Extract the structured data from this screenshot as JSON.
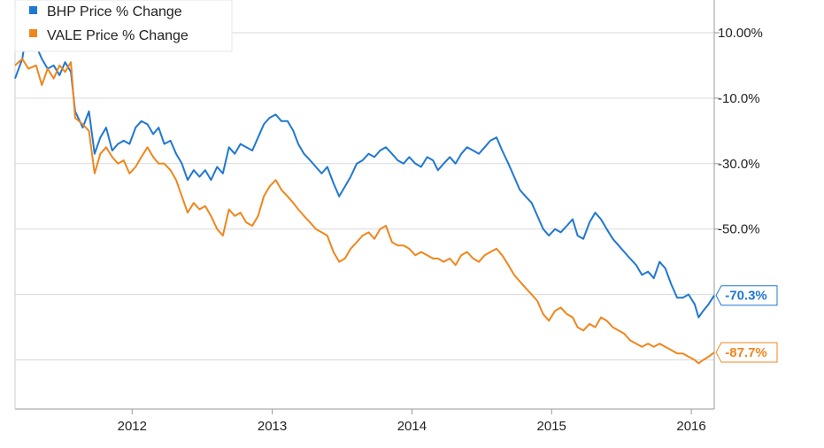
{
  "chart_data": {
    "type": "line",
    "title": "",
    "xlabel": "",
    "ylabel": "",
    "x_range": [
      "2011-03-01",
      "2016-03-01"
    ],
    "ylim": [
      -105,
      20
    ],
    "y_ticks": [
      {
        "value": 10,
        "label": "10.00%"
      },
      {
        "value": -10,
        "label": "-10.0%"
      },
      {
        "value": -30,
        "label": "-30.0%"
      },
      {
        "value": -50,
        "label": "-50.0%"
      }
    ],
    "y_gridlines": [
      10,
      -10,
      -30,
      -50,
      -70,
      -90
    ],
    "x_ticks": [
      {
        "date": "2012-01-01",
        "label": "2012"
      },
      {
        "date": "2013-01-01",
        "label": "2013"
      },
      {
        "date": "2014-01-01",
        "label": "2014"
      },
      {
        "date": "2015-01-01",
        "label": "2015"
      },
      {
        "date": "2016-01-01",
        "label": "2016"
      }
    ],
    "grid": true,
    "legend_position": "top-left",
    "series": [
      {
        "name": "BHP Price % Change",
        "color": "#1f78d1",
        "end_label": "-70.3%",
        "points": [
          [
            "2011-03-01",
            -4
          ],
          [
            "2011-03-20",
            2
          ],
          [
            "2011-04-05",
            14
          ],
          [
            "2011-04-25",
            6
          ],
          [
            "2011-05-10",
            2
          ],
          [
            "2011-05-25",
            -1
          ],
          [
            "2011-06-10",
            0
          ],
          [
            "2011-06-25",
            -3
          ],
          [
            "2011-07-10",
            1
          ],
          [
            "2011-07-25",
            -2
          ],
          [
            "2011-08-05",
            -14
          ],
          [
            "2011-08-25",
            -19
          ],
          [
            "2011-09-10",
            -14
          ],
          [
            "2011-09-25",
            -27
          ],
          [
            "2011-10-10",
            -22
          ],
          [
            "2011-10-25",
            -19
          ],
          [
            "2011-11-10",
            -26
          ],
          [
            "2011-11-25",
            -24
          ],
          [
            "2011-12-10",
            -23
          ],
          [
            "2011-12-25",
            -24
          ],
          [
            "2012-01-10",
            -19
          ],
          [
            "2012-01-25",
            -17
          ],
          [
            "2012-02-10",
            -18
          ],
          [
            "2012-02-25",
            -21
          ],
          [
            "2012-03-10",
            -19
          ],
          [
            "2012-03-25",
            -24
          ],
          [
            "2012-04-10",
            -23
          ],
          [
            "2012-04-25",
            -27
          ],
          [
            "2012-05-10",
            -30
          ],
          [
            "2012-05-25",
            -35
          ],
          [
            "2012-06-10",
            -32
          ],
          [
            "2012-06-25",
            -34
          ],
          [
            "2012-07-10",
            -32
          ],
          [
            "2012-07-25",
            -35
          ],
          [
            "2012-08-10",
            -31
          ],
          [
            "2012-08-25",
            -33
          ],
          [
            "2012-09-10",
            -25
          ],
          [
            "2012-09-25",
            -27
          ],
          [
            "2012-10-10",
            -24
          ],
          [
            "2012-10-25",
            -25
          ],
          [
            "2012-11-10",
            -26
          ],
          [
            "2012-11-25",
            -22
          ],
          [
            "2012-12-10",
            -18
          ],
          [
            "2012-12-25",
            -16
          ],
          [
            "2013-01-10",
            -15
          ],
          [
            "2013-01-25",
            -17
          ],
          [
            "2013-02-10",
            -17
          ],
          [
            "2013-02-25",
            -20
          ],
          [
            "2013-03-10",
            -24
          ],
          [
            "2013-03-25",
            -27
          ],
          [
            "2013-04-10",
            -29
          ],
          [
            "2013-04-25",
            -31
          ],
          [
            "2013-05-10",
            -33
          ],
          [
            "2013-05-25",
            -31
          ],
          [
            "2013-06-10",
            -36
          ],
          [
            "2013-06-25",
            -40
          ],
          [
            "2013-07-10",
            -37
          ],
          [
            "2013-07-25",
            -34
          ],
          [
            "2013-08-10",
            -30
          ],
          [
            "2013-08-25",
            -29
          ],
          [
            "2013-09-10",
            -27
          ],
          [
            "2013-09-25",
            -28
          ],
          [
            "2013-10-10",
            -26
          ],
          [
            "2013-10-25",
            -25
          ],
          [
            "2013-11-10",
            -27
          ],
          [
            "2013-11-25",
            -29
          ],
          [
            "2013-12-10",
            -30
          ],
          [
            "2013-12-25",
            -28
          ],
          [
            "2014-01-10",
            -30
          ],
          [
            "2014-01-25",
            -31
          ],
          [
            "2014-02-10",
            -28
          ],
          [
            "2014-02-25",
            -29
          ],
          [
            "2014-03-10",
            -32
          ],
          [
            "2014-03-25",
            -30
          ],
          [
            "2014-04-10",
            -28
          ],
          [
            "2014-04-25",
            -30
          ],
          [
            "2014-05-10",
            -27
          ],
          [
            "2014-05-25",
            -25
          ],
          [
            "2014-06-10",
            -26
          ],
          [
            "2014-06-25",
            -27
          ],
          [
            "2014-07-10",
            -25
          ],
          [
            "2014-07-25",
            -23
          ],
          [
            "2014-08-10",
            -22
          ],
          [
            "2014-08-25",
            -26
          ],
          [
            "2014-09-10",
            -30
          ],
          [
            "2014-09-25",
            -34
          ],
          [
            "2014-10-10",
            -38
          ],
          [
            "2014-10-25",
            -40
          ],
          [
            "2014-11-10",
            -42
          ],
          [
            "2014-11-25",
            -46
          ],
          [
            "2014-12-10",
            -50
          ],
          [
            "2014-12-25",
            -52
          ],
          [
            "2015-01-10",
            -50
          ],
          [
            "2015-01-25",
            -51
          ],
          [
            "2015-02-10",
            -49
          ],
          [
            "2015-02-25",
            -47
          ],
          [
            "2015-03-10",
            -52
          ],
          [
            "2015-03-25",
            -53
          ],
          [
            "2015-04-10",
            -48
          ],
          [
            "2015-04-25",
            -45
          ],
          [
            "2015-05-10",
            -47
          ],
          [
            "2015-05-25",
            -50
          ],
          [
            "2015-06-10",
            -53
          ],
          [
            "2015-06-25",
            -55
          ],
          [
            "2015-07-10",
            -57
          ],
          [
            "2015-07-25",
            -59
          ],
          [
            "2015-08-10",
            -61
          ],
          [
            "2015-08-25",
            -64
          ],
          [
            "2015-09-10",
            -63
          ],
          [
            "2015-09-25",
            -65
          ],
          [
            "2015-10-10",
            -60
          ],
          [
            "2015-10-25",
            -62
          ],
          [
            "2015-11-10",
            -67
          ],
          [
            "2015-11-25",
            -71
          ],
          [
            "2015-12-10",
            -71
          ],
          [
            "2015-12-25",
            -70
          ],
          [
            "2016-01-10",
            -73
          ],
          [
            "2016-01-20",
            -77
          ],
          [
            "2016-02-01",
            -75
          ],
          [
            "2016-02-15",
            -73
          ],
          [
            "2016-03-01",
            -70.3
          ]
        ]
      },
      {
        "name": "VALE Price % Change",
        "color": "#f0861c",
        "end_label": "-87.7%",
        "points": [
          [
            "2011-03-01",
            0
          ],
          [
            "2011-03-20",
            2
          ],
          [
            "2011-04-05",
            -1
          ],
          [
            "2011-04-25",
            0
          ],
          [
            "2011-05-10",
            -6
          ],
          [
            "2011-05-25",
            -1
          ],
          [
            "2011-06-10",
            -4
          ],
          [
            "2011-06-25",
            0
          ],
          [
            "2011-07-10",
            -2
          ],
          [
            "2011-07-25",
            1
          ],
          [
            "2011-08-05",
            -16
          ],
          [
            "2011-08-25",
            -18
          ],
          [
            "2011-09-10",
            -20
          ],
          [
            "2011-09-25",
            -33
          ],
          [
            "2011-10-10",
            -27
          ],
          [
            "2011-10-25",
            -25
          ],
          [
            "2011-11-10",
            -28
          ],
          [
            "2011-11-25",
            -30
          ],
          [
            "2011-12-10",
            -29
          ],
          [
            "2011-12-25",
            -33
          ],
          [
            "2012-01-10",
            -31
          ],
          [
            "2012-01-25",
            -28
          ],
          [
            "2012-02-10",
            -25
          ],
          [
            "2012-02-25",
            -28
          ],
          [
            "2012-03-10",
            -30
          ],
          [
            "2012-03-25",
            -30
          ],
          [
            "2012-04-10",
            -32
          ],
          [
            "2012-04-25",
            -35
          ],
          [
            "2012-05-10",
            -40
          ],
          [
            "2012-05-25",
            -45
          ],
          [
            "2012-06-10",
            -42
          ],
          [
            "2012-06-25",
            -44
          ],
          [
            "2012-07-10",
            -43
          ],
          [
            "2012-07-25",
            -46
          ],
          [
            "2012-08-10",
            -50
          ],
          [
            "2012-08-25",
            -52
          ],
          [
            "2012-09-10",
            -44
          ],
          [
            "2012-09-25",
            -46
          ],
          [
            "2012-10-10",
            -45
          ],
          [
            "2012-10-25",
            -48
          ],
          [
            "2012-11-10",
            -49
          ],
          [
            "2012-11-25",
            -46
          ],
          [
            "2012-12-10",
            -40
          ],
          [
            "2012-12-25",
            -37
          ],
          [
            "2013-01-10",
            -35
          ],
          [
            "2013-01-25",
            -38
          ],
          [
            "2013-02-10",
            -40
          ],
          [
            "2013-02-25",
            -42
          ],
          [
            "2013-03-10",
            -44
          ],
          [
            "2013-03-25",
            -46
          ],
          [
            "2013-04-10",
            -48
          ],
          [
            "2013-04-25",
            -50
          ],
          [
            "2013-05-10",
            -51
          ],
          [
            "2013-05-25",
            -52
          ],
          [
            "2013-06-10",
            -57
          ],
          [
            "2013-06-25",
            -60
          ],
          [
            "2013-07-10",
            -59
          ],
          [
            "2013-07-25",
            -56
          ],
          [
            "2013-08-10",
            -54
          ],
          [
            "2013-08-25",
            -52
          ],
          [
            "2013-09-10",
            -51
          ],
          [
            "2013-09-25",
            -53
          ],
          [
            "2013-10-10",
            -50
          ],
          [
            "2013-10-25",
            -49
          ],
          [
            "2013-11-10",
            -54
          ],
          [
            "2013-11-25",
            -55
          ],
          [
            "2013-12-10",
            -55
          ],
          [
            "2013-12-25",
            -56
          ],
          [
            "2014-01-10",
            -58
          ],
          [
            "2014-01-25",
            -57
          ],
          [
            "2014-02-10",
            -58
          ],
          [
            "2014-02-25",
            -59
          ],
          [
            "2014-03-10",
            -59
          ],
          [
            "2014-03-25",
            -60
          ],
          [
            "2014-04-10",
            -59
          ],
          [
            "2014-04-25",
            -61
          ],
          [
            "2014-05-10",
            -58
          ],
          [
            "2014-05-25",
            -57
          ],
          [
            "2014-06-10",
            -59
          ],
          [
            "2014-06-25",
            -60
          ],
          [
            "2014-07-10",
            -58
          ],
          [
            "2014-07-25",
            -57
          ],
          [
            "2014-08-10",
            -56
          ],
          [
            "2014-08-25",
            -58
          ],
          [
            "2014-09-10",
            -61
          ],
          [
            "2014-09-25",
            -64
          ],
          [
            "2014-10-10",
            -66
          ],
          [
            "2014-10-25",
            -68
          ],
          [
            "2014-11-10",
            -70
          ],
          [
            "2014-11-25",
            -72
          ],
          [
            "2014-12-10",
            -76
          ],
          [
            "2014-12-25",
            -78
          ],
          [
            "2015-01-10",
            -75
          ],
          [
            "2015-01-25",
            -74
          ],
          [
            "2015-02-10",
            -76
          ],
          [
            "2015-02-25",
            -77
          ],
          [
            "2015-03-10",
            -80
          ],
          [
            "2015-03-25",
            -81
          ],
          [
            "2015-04-10",
            -79
          ],
          [
            "2015-04-25",
            -80
          ],
          [
            "2015-05-10",
            -77
          ],
          [
            "2015-05-25",
            -78
          ],
          [
            "2015-06-10",
            -80
          ],
          [
            "2015-06-25",
            -81
          ],
          [
            "2015-07-10",
            -82
          ],
          [
            "2015-07-25",
            -84
          ],
          [
            "2015-08-10",
            -85
          ],
          [
            "2015-08-25",
            -86
          ],
          [
            "2015-09-10",
            -85
          ],
          [
            "2015-09-25",
            -86
          ],
          [
            "2015-10-10",
            -85
          ],
          [
            "2015-10-25",
            -86
          ],
          [
            "2015-11-10",
            -87
          ],
          [
            "2015-11-25",
            -88
          ],
          [
            "2015-12-10",
            -88
          ],
          [
            "2015-12-25",
            -89
          ],
          [
            "2016-01-10",
            -90
          ],
          [
            "2016-01-20",
            -91
          ],
          [
            "2016-02-01",
            -90
          ],
          [
            "2016-02-15",
            -89
          ],
          [
            "2016-03-01",
            -87.7
          ]
        ]
      }
    ]
  }
}
